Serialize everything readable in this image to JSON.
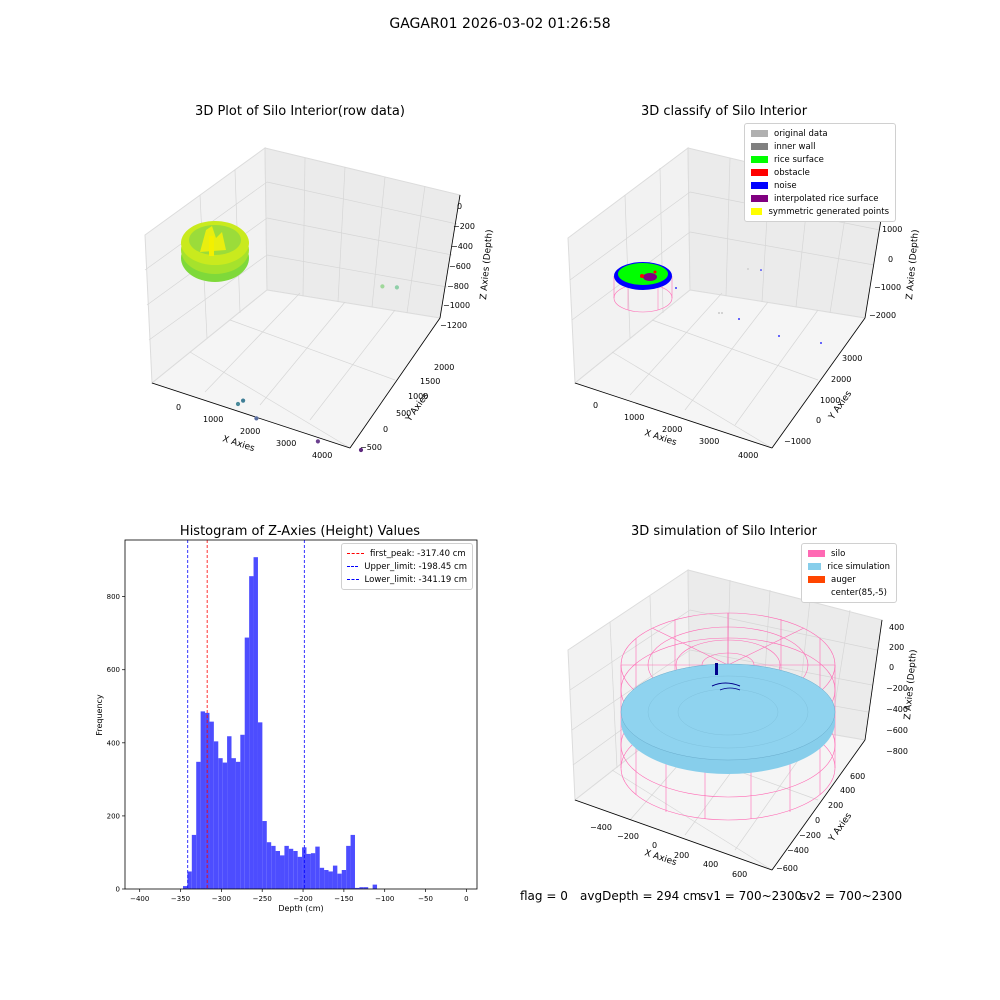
{
  "suptitle": "GAGAR01 2026-03-02 01:26:58",
  "footer": {
    "flag": "flag = 0",
    "avg_depth": "avgDepth = 294 cm",
    "sv1": "sv1 = 700~2300",
    "sv2": "sv2 = 700~2300"
  },
  "chart_data": [
    {
      "type": "scatter",
      "title": "3D Plot of Silo Interior(row data)",
      "xlabel": "X Axies",
      "ylabel": "Y Axies",
      "zlabel": "Z Axies (Depth)",
      "x_ticks": [
        "0",
        "1000",
        "2000",
        "3000",
        "4000"
      ],
      "y_ticks": [
        "−500",
        "0",
        "500",
        "1000",
        "1500",
        "2000"
      ],
      "z_ticks": [
        "0",
        "−200",
        "−400",
        "−600",
        "−800",
        "−1000",
        "−1200"
      ],
      "points": [
        {
          "x": 2200,
          "y": 1800,
          "z": -350
        },
        {
          "x": 2450,
          "y": 1850,
          "z": -400
        },
        {
          "x": 1000,
          "y": 200,
          "z": -800
        },
        {
          "x": 1050,
          "y": 250,
          "z": -800
        },
        {
          "x": 1450,
          "y": 150,
          "z": -1000
        },
        {
          "x": 2700,
          "y": 200,
          "z": -1250
        },
        {
          "x": 3500,
          "y": 300,
          "z": -1300
        }
      ]
    },
    {
      "type": "scatter",
      "title": "3D classify of Silo Interior",
      "xlabel": "X Axies",
      "ylabel": "Y Axies",
      "zlabel": "Z Axies (Depth)",
      "x_ticks": [
        "0",
        "1000",
        "2000",
        "3000",
        "4000"
      ],
      "y_ticks": [
        "−1000",
        "0",
        "1000",
        "2000",
        "3000"
      ],
      "z_ticks": [
        "1000",
        "0",
        "−1000",
        "−2000"
      ],
      "legend": [
        {
          "label": "original data",
          "color": "#b0b0b0"
        },
        {
          "label": "inner wall",
          "color": "#808080"
        },
        {
          "label": "rice surface",
          "color": "#00ff00"
        },
        {
          "label": "obstacle",
          "color": "#ff0000"
        },
        {
          "label": "noise",
          "color": "#0000ff"
        },
        {
          "label": "interpolated rice surface",
          "color": "#800080"
        },
        {
          "label": "symmetric generated points",
          "color": "#ffff00"
        }
      ]
    },
    {
      "type": "bar",
      "title": "Histogram of Z-Axies (Height) Values",
      "xlabel": "Depth (cm)",
      "ylabel": "Frequency",
      "xlim": [
        -418,
        13
      ],
      "ylim": [
        0,
        955
      ],
      "x_ticks": [
        -400,
        -350,
        -300,
        -250,
        -200,
        -150,
        -100,
        -50,
        0
      ],
      "y_ticks": [
        0,
        200,
        400,
        600,
        800
      ],
      "bin_start": -347,
      "bin_width": 5.4,
      "values": [
        8,
        48,
        148,
        348,
        486,
        482,
        458,
        404,
        358,
        346,
        418,
        358,
        348,
        422,
        688,
        856,
        908,
        456,
        186,
        128,
        118,
        104,
        92,
        118,
        110,
        104,
        88,
        114,
        96,
        98,
        116,
        58,
        52,
        48,
        64,
        42,
        52,
        118,
        148,
        3,
        5,
        5,
        0,
        12
      ],
      "lines": [
        {
          "label": "first_peak: -317.40 cm",
          "value": -317.4,
          "color": "#ff0000"
        },
        {
          "label": "Upper_limit: -198.45 cm",
          "value": -198.45,
          "color": "#0000ff"
        },
        {
          "label": "Lower_limit: -341.19 cm",
          "value": -341.19,
          "color": "#0000ff"
        }
      ],
      "bar_color": "#4d4dff"
    },
    {
      "type": "scatter",
      "title": "3D simulation of Silo Interior",
      "xlabel": "X Axies",
      "ylabel": "Y Axies",
      "zlabel": "Z Axies (Depth)",
      "x_ticks": [
        "−400",
        "−200",
        "0",
        "200",
        "400",
        "600"
      ],
      "y_ticks": [
        "−600",
        "−400",
        "−200",
        "0",
        "200",
        "400",
        "600"
      ],
      "z_ticks": [
        "400",
        "200",
        "0",
        "−200",
        "−400",
        "−600",
        "−800"
      ],
      "legend": [
        {
          "label": "silo",
          "color": "#ff69b4"
        },
        {
          "label": "rice simulation",
          "color": "#87ceeb"
        },
        {
          "label": "auger",
          "color": "#ff4500"
        },
        {
          "label": "center(85,-5)",
          "color": "#ffffff"
        }
      ]
    }
  ]
}
